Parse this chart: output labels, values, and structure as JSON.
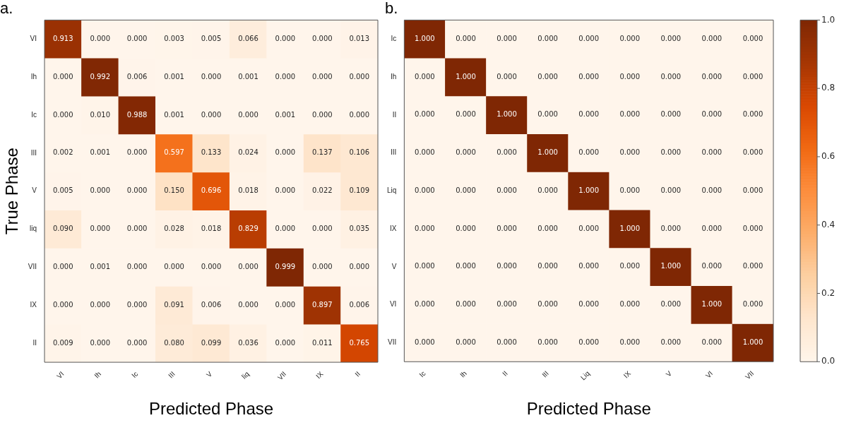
{
  "chart_data": [
    {
      "type": "heatmap",
      "title": "a.",
      "xlabel": "Predicted Phase",
      "ylabel": "True Phase",
      "categories": [
        "VI",
        "Ih",
        "Ic",
        "III",
        "V",
        "liq",
        "VII",
        "IX",
        "II"
      ],
      "y_categories": [
        "VI",
        "Ih",
        "Ic",
        "III",
        "V",
        "liq",
        "VII",
        "IX",
        "II"
      ],
      "cells": [
        [
          0.913,
          0.0,
          0.0,
          0.003,
          0.005,
          0.066,
          0.0,
          0.0,
          0.013
        ],
        [
          0.0,
          0.992,
          0.006,
          0.001,
          0.0,
          0.001,
          0.0,
          0.0,
          0.0
        ],
        [
          0.0,
          0.01,
          0.988,
          0.001,
          0.0,
          0.0,
          0.001,
          0.0,
          0.0
        ],
        [
          0.002,
          0.001,
          0.0,
          0.597,
          0.133,
          0.024,
          0.0,
          0.137,
          0.106
        ],
        [
          0.005,
          0.0,
          0.0,
          0.15,
          0.696,
          0.018,
          0.0,
          0.022,
          0.109
        ],
        [
          0.09,
          0.0,
          0.0,
          0.028,
          0.018,
          0.829,
          0.0,
          0.0,
          0.035
        ],
        [
          0.0,
          0.001,
          0.0,
          0.0,
          0.0,
          0.0,
          0.999,
          0.0,
          0.0
        ],
        [
          0.0,
          0.0,
          0.0,
          0.091,
          0.006,
          0.0,
          0.0,
          0.897,
          0.006
        ],
        [
          0.009,
          0.0,
          0.0,
          0.08,
          0.099,
          0.036,
          0.0,
          0.011,
          0.765
        ]
      ],
      "cell_labels": [
        [
          "0.913",
          "0.000",
          "0.000",
          "0.003",
          "0.005",
          "0.066",
          "0.000",
          "0.000",
          "0.013"
        ],
        [
          "0.000",
          "0.992",
          "0.006",
          "0.001",
          "0.000",
          "0.001",
          "0.000",
          "0.000",
          "0.000"
        ],
        [
          "0.000",
          "0.010",
          "0.988",
          "0.001",
          "0.000",
          "0.000",
          "0.001",
          "0.000",
          "0.000"
        ],
        [
          "0.002",
          "0.001",
          "0.000",
          "0.597",
          "0.133",
          "0.024",
          "0.000",
          "0.137",
          "0.106"
        ],
        [
          "0.005",
          "0.000",
          "0.000",
          "0.150",
          "0.696",
          "0.018",
          "0.000",
          "0.022",
          "0.109"
        ],
        [
          "0.090",
          "0.000",
          "0.000",
          "0.028",
          "0.018",
          "0.829",
          "0.000",
          "0.000",
          "0.035"
        ],
        [
          "0.000",
          "0.001",
          "0.000",
          "0.000",
          "0.000",
          "0.000",
          "0.999",
          "0.000",
          "0.000"
        ],
        [
          "0.000",
          "0.000",
          "0.000",
          "0.091",
          "0.006",
          "0.000",
          "0.000",
          "0.897",
          "0.006"
        ],
        [
          "0.009",
          "0.000",
          "0.000",
          "0.080",
          "0.099",
          "0.036",
          "0.000",
          "0.011",
          "0.765"
        ]
      ]
    },
    {
      "type": "heatmap",
      "title": "b.",
      "xlabel": "Predicted Phase",
      "categories": [
        "Ic",
        "Ih",
        "II",
        "III",
        "Liq",
        "IX",
        "V",
        "VI",
        "VII"
      ],
      "y_categories": [
        "Ic",
        "Ih",
        "II",
        "III",
        "Liq",
        "IX",
        "V",
        "VI",
        "VII"
      ],
      "cells": [
        [
          1.0,
          0.0,
          0.0,
          0.0,
          0.0,
          0.0,
          0.0,
          0.0,
          0.0
        ],
        [
          0.0,
          1.0,
          0.0,
          0.0,
          0.0,
          0.0,
          0.0,
          0.0,
          0.0
        ],
        [
          0.0,
          0.0,
          1.0,
          0.0,
          0.0,
          0.0,
          0.0,
          0.0,
          0.0
        ],
        [
          0.0,
          0.0,
          0.0,
          1.0,
          0.0,
          0.0,
          0.0,
          0.0,
          0.0
        ],
        [
          0.0,
          0.0,
          0.0,
          0.0,
          1.0,
          0.0,
          0.0,
          0.0,
          0.0
        ],
        [
          0.0,
          0.0,
          0.0,
          0.0,
          0.0,
          1.0,
          0.0,
          0.0,
          0.0
        ],
        [
          0.0,
          0.0,
          0.0,
          0.0,
          0.0,
          0.0,
          1.0,
          0.0,
          0.0
        ],
        [
          0.0,
          0.0,
          0.0,
          0.0,
          0.0,
          0.0,
          0.0,
          1.0,
          0.0
        ],
        [
          0.0,
          0.0,
          0.0,
          0.0,
          0.0,
          0.0,
          0.0,
          0.0,
          1.0
        ]
      ],
      "cell_labels": [
        [
          "1.000",
          "0.000",
          "0.000",
          "0.000",
          "0.000",
          "0.000",
          "0.000",
          "0.000",
          "0.000"
        ],
        [
          "0.000",
          "1.000",
          "0.000",
          "0.000",
          "0.000",
          "0.000",
          "0.000",
          "0.000",
          "0.000"
        ],
        [
          "0.000",
          "0.000",
          "1.000",
          "0.000",
          "0.000",
          "0.000",
          "0.000",
          "0.000",
          "0.000"
        ],
        [
          "0.000",
          "0.000",
          "0.000",
          "1.000",
          "0.000",
          "0.000",
          "0.000",
          "0.000",
          "0.000"
        ],
        [
          "0.000",
          "0.000",
          "0.000",
          "0.000",
          "1.000",
          "0.000",
          "0.000",
          "0.000",
          "0.000"
        ],
        [
          "0.000",
          "0.000",
          "0.000",
          "0.000",
          "0.000",
          "1.000",
          "0.000",
          "0.000",
          "0.000"
        ],
        [
          "0.000",
          "0.000",
          "0.000",
          "0.000",
          "0.000",
          "0.000",
          "1.000",
          "0.000",
          "0.000"
        ],
        [
          "0.000",
          "0.000",
          "0.000",
          "0.000",
          "0.000",
          "0.000",
          "0.000",
          "1.000",
          "0.000"
        ],
        [
          "0.000",
          "0.000",
          "0.000",
          "0.000",
          "0.000",
          "0.000",
          "0.000",
          "0.000",
          "1.000"
        ]
      ],
      "clim": [
        0,
        1
      ],
      "cticks": [
        {
          "value": 0,
          "label": "0.0"
        },
        0.2,
        0.4,
        0.6,
        0.8,
        {
          "value": 1,
          "label": "1.0"
        }
      ]
    }
  ]
}
